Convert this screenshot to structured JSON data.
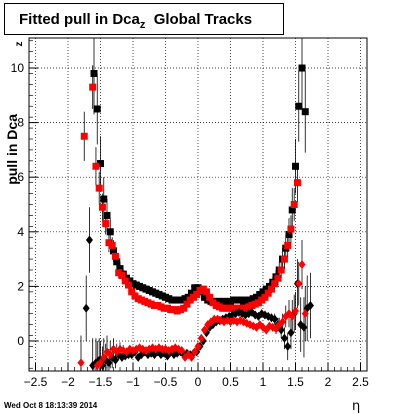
{
  "chart_data": {
    "type": "scatter",
    "title": "Fitted pull in Dca",
    "title_subscript": "z",
    "title_suffix": "Global Tracks",
    "xlabel": "η",
    "ylabel": "pull in Dca",
    "ylabel_subscript": "z",
    "xlim": [
      -2.6,
      2.6
    ],
    "ylim": [
      -1.1,
      11.1
    ],
    "x_ticks": [
      "−2.5",
      "−2",
      "−1.5",
      "−1",
      "−0.5",
      "0",
      "0.5",
      "1",
      "1.5",
      "2",
      "2.5"
    ],
    "x_tick_values": [
      -2.5,
      -2,
      -1.5,
      -1,
      -0.5,
      0,
      0.5,
      1,
      1.5,
      2,
      2.5
    ],
    "y_ticks": [
      "0",
      "2",
      "4",
      "6",
      "8",
      "10"
    ],
    "y_tick_values": [
      0,
      2,
      4,
      6,
      8,
      10
    ],
    "grid": true,
    "footer": "Wed Oct  8 18:13:39 2014",
    "series": [
      {
        "color": "#000000",
        "marker": "square",
        "x": [
          -1.6,
          -1.55,
          -1.5,
          -1.45,
          -1.4,
          -1.35,
          -1.3,
          -1.25,
          -1.2,
          -1.15,
          -1.1,
          -1.05,
          -1.0,
          -0.95,
          -0.9,
          -0.85,
          -0.8,
          -0.75,
          -0.7,
          -0.65,
          -0.6,
          -0.55,
          -0.5,
          -0.45,
          -0.4,
          -0.35,
          -0.3,
          -0.25,
          -0.2,
          -0.15,
          -0.1,
          -0.05,
          0.0,
          0.05,
          0.1,
          0.15,
          0.2,
          0.25,
          0.3,
          0.35,
          0.4,
          0.45,
          0.5,
          0.55,
          0.6,
          0.65,
          0.7,
          0.75,
          0.8,
          0.85,
          0.9,
          0.95,
          1.0,
          1.05,
          1.1,
          1.15,
          1.2,
          1.25,
          1.3,
          1.35,
          1.4,
          1.45,
          1.5,
          1.55,
          1.6,
          1.65
        ],
        "y": [
          9.8,
          8.5,
          6.5,
          5.2,
          4.6,
          4.0,
          3.3,
          2.9,
          2.65,
          2.45,
          2.3,
          2.2,
          2.1,
          2.05,
          2.0,
          1.95,
          1.9,
          1.85,
          1.8,
          1.75,
          1.7,
          1.65,
          1.6,
          1.55,
          1.5,
          1.5,
          1.5,
          1.5,
          1.55,
          1.6,
          1.75,
          1.95,
          1.95,
          1.8,
          1.6,
          1.5,
          1.45,
          1.45,
          1.45,
          1.45,
          1.45,
          1.45,
          1.45,
          1.5,
          1.5,
          1.5,
          1.45,
          1.5,
          1.5,
          1.55,
          1.6,
          1.7,
          1.8,
          1.9,
          2.0,
          2.15,
          2.35,
          2.6,
          3.0,
          3.4,
          3.9,
          4.8,
          6.4,
          8.6,
          10.0,
          8.4
        ],
        "err": [
          1.5,
          1.3,
          1.0,
          0.8,
          0.6,
          0.5,
          0.4,
          0.3,
          0.25,
          0.2,
          0.15,
          0.1,
          0.1,
          0.1,
          0.1,
          0.1,
          0.1,
          0.1,
          0.1,
          0.1,
          0.1,
          0.1,
          0.1,
          0.1,
          0.1,
          0.1,
          0.1,
          0.1,
          0.1,
          0.1,
          0.1,
          0.1,
          0.1,
          0.1,
          0.1,
          0.1,
          0.1,
          0.1,
          0.1,
          0.1,
          0.1,
          0.1,
          0.1,
          0.1,
          0.1,
          0.1,
          0.1,
          0.1,
          0.1,
          0.1,
          0.1,
          0.1,
          0.1,
          0.1,
          0.15,
          0.2,
          0.25,
          0.3,
          0.4,
          0.5,
          0.6,
          0.8,
          1.0,
          1.3,
          1.5,
          1.5
        ]
      },
      {
        "color": "#ff0000",
        "marker": "square",
        "x": [
          -1.75,
          -1.62,
          -1.57,
          -1.52,
          -1.47,
          -1.42,
          -1.37,
          -1.32,
          -1.27,
          -1.22,
          -1.17,
          -1.12,
          -1.07,
          -1.02,
          -0.97,
          -0.92,
          -0.87,
          -0.82,
          -0.77,
          -0.72,
          -0.67,
          -0.62,
          -0.57,
          -0.52,
          -0.47,
          -0.42,
          -0.37,
          -0.32,
          -0.27,
          -0.22,
          -0.17,
          -0.12,
          -0.07,
          -0.02,
          0.03,
          0.08,
          0.13,
          0.18,
          0.23,
          0.28,
          0.33,
          0.38,
          0.43,
          0.48,
          0.53,
          0.58,
          0.63,
          0.68,
          0.73,
          0.78,
          0.83,
          0.88,
          0.93,
          0.98,
          1.03,
          1.08,
          1.13,
          1.18,
          1.23,
          1.28,
          1.33,
          1.38,
          1.43,
          1.48,
          1.53
        ],
        "y": [
          7.5,
          9.3,
          6.4,
          5.6,
          4.9,
          4.3,
          3.6,
          3.5,
          3.1,
          2.5,
          2.4,
          2.2,
          2.05,
          1.8,
          1.65,
          1.55,
          1.5,
          1.45,
          1.4,
          1.35,
          1.3,
          1.3,
          1.25,
          1.2,
          1.2,
          1.15,
          1.15,
          1.1,
          1.15,
          1.2,
          1.35,
          1.5,
          1.6,
          1.7,
          1.85,
          1.9,
          1.8,
          1.6,
          1.4,
          1.3,
          1.25,
          1.2,
          1.2,
          1.2,
          1.2,
          1.2,
          1.2,
          1.2,
          1.2,
          1.25,
          1.3,
          1.35,
          1.4,
          1.5,
          1.6,
          1.75,
          1.9,
          2.1,
          2.3,
          2.6,
          3.0,
          3.5,
          4.1,
          5.0,
          5.8
        ],
        "err": [
          0.9,
          0.8,
          0.7,
          0.6,
          0.5,
          0.4,
          0.35,
          0.3,
          0.25,
          0.2,
          0.15,
          0.1,
          0.1,
          0.1,
          0.1,
          0.1,
          0.1,
          0.1,
          0.1,
          0.1,
          0.1,
          0.1,
          0.1,
          0.1,
          0.1,
          0.1,
          0.1,
          0.1,
          0.1,
          0.1,
          0.1,
          0.1,
          0.1,
          0.1,
          0.1,
          0.1,
          0.1,
          0.1,
          0.1,
          0.1,
          0.1,
          0.1,
          0.1,
          0.1,
          0.1,
          0.1,
          0.1,
          0.1,
          0.1,
          0.1,
          0.1,
          0.1,
          0.1,
          0.1,
          0.1,
          0.1,
          0.15,
          0.2,
          0.25,
          0.3,
          0.35,
          0.4,
          0.5,
          0.6,
          0.7
        ]
      },
      {
        "color": "#000000",
        "marker": "diamond",
        "x": [
          -1.72,
          -1.67,
          -1.62,
          -1.57,
          -1.52,
          -1.47,
          -1.42,
          -1.37,
          -1.32,
          -1.27,
          -1.22,
          -1.17,
          -1.12,
          -1.07,
          -1.02,
          -0.97,
          -0.92,
          -0.87,
          -0.82,
          -0.77,
          -0.72,
          -0.67,
          -0.62,
          -0.57,
          -0.52,
          -0.47,
          -0.42,
          -0.37,
          -0.32,
          -0.27,
          -0.22,
          -0.17,
          -0.12,
          -0.07,
          -0.02,
          0.03,
          0.08,
          0.13,
          0.18,
          0.23,
          0.28,
          0.33,
          0.38,
          0.43,
          0.48,
          0.53,
          0.58,
          0.63,
          0.68,
          0.73,
          0.78,
          0.83,
          0.88,
          0.93,
          0.98,
          1.03,
          1.08,
          1.13,
          1.18,
          1.23,
          1.28,
          1.33,
          1.38,
          1.43,
          1.48,
          1.53,
          1.58,
          1.63,
          1.68,
          1.73
        ],
        "y": [
          1.2,
          3.7,
          -0.9,
          -0.8,
          -0.7,
          -0.9,
          -0.7,
          -0.8,
          -0.6,
          -0.7,
          -0.5,
          -0.6,
          -0.55,
          -0.5,
          -0.5,
          -0.4,
          -0.6,
          -0.5,
          -0.4,
          -0.5,
          -0.45,
          -0.5,
          -0.4,
          -0.5,
          -0.45,
          -0.55,
          -0.4,
          -0.5,
          -0.45,
          -0.4,
          -0.5,
          -0.45,
          -0.5,
          -0.45,
          -0.4,
          -0.2,
          0.0,
          0.3,
          0.5,
          0.6,
          0.7,
          0.75,
          0.8,
          0.85,
          0.9,
          0.95,
          1.0,
          1.05,
          1.0,
          0.95,
          1.0,
          1.05,
          0.95,
          0.9,
          1.0,
          0.95,
          0.9,
          0.85,
          0.8,
          0.6,
          0.4,
          0.1,
          -0.2,
          0.3,
          1.0,
          2.1,
          0.6,
          0.5,
          1.2,
          1.3
        ],
        "err": [
          1.2,
          1.2,
          1.0,
          0.9,
          0.8,
          0.7,
          0.6,
          0.5,
          0.4,
          0.3,
          0.2,
          0.15,
          0.1,
          0.1,
          0.1,
          0.1,
          0.1,
          0.1,
          0.1,
          0.1,
          0.1,
          0.1,
          0.1,
          0.1,
          0.1,
          0.1,
          0.1,
          0.1,
          0.1,
          0.1,
          0.1,
          0.1,
          0.1,
          0.1,
          0.1,
          0.1,
          0.1,
          0.1,
          0.1,
          0.1,
          0.1,
          0.1,
          0.1,
          0.1,
          0.1,
          0.1,
          0.1,
          0.1,
          0.1,
          0.1,
          0.1,
          0.1,
          0.1,
          0.1,
          0.1,
          0.1,
          0.1,
          0.15,
          0.2,
          0.25,
          0.3,
          0.4,
          0.5,
          0.6,
          0.7,
          0.9,
          1.0,
          1.1,
          1.2,
          1.2
        ]
      },
      {
        "color": "#ff0000",
        "marker": "diamond",
        "x": [
          -1.8,
          -1.55,
          -1.5,
          -1.45,
          -1.4,
          -1.35,
          -1.3,
          -1.25,
          -1.2,
          -1.15,
          -1.1,
          -1.05,
          -1.0,
          -0.95,
          -0.9,
          -0.85,
          -0.8,
          -0.75,
          -0.7,
          -0.65,
          -0.6,
          -0.55,
          -0.5,
          -0.45,
          -0.4,
          -0.35,
          -0.3,
          -0.25,
          -0.2,
          -0.15,
          -0.1,
          -0.05,
          0.0,
          0.05,
          0.1,
          0.15,
          0.2,
          0.25,
          0.3,
          0.35,
          0.4,
          0.45,
          0.5,
          0.55,
          0.6,
          0.65,
          0.7,
          0.75,
          0.8,
          0.85,
          0.9,
          0.95,
          1.0,
          1.05,
          1.1,
          1.15,
          1.2,
          1.25,
          1.3,
          1.35,
          1.4,
          1.45,
          1.5,
          1.55,
          1.6,
          1.65
        ],
        "y": [
          -0.8,
          -0.9,
          -0.8,
          -0.6,
          -0.4,
          -0.5,
          -0.3,
          -0.4,
          -0.3,
          -0.35,
          -0.4,
          -0.3,
          -0.35,
          -0.3,
          -0.25,
          -0.3,
          -0.35,
          -0.3,
          -0.25,
          -0.3,
          -0.25,
          -0.3,
          -0.3,
          -0.35,
          -0.3,
          -0.25,
          -0.3,
          -0.35,
          -0.6,
          -0.5,
          -0.6,
          -0.4,
          -0.2,
          0.1,
          0.4,
          0.6,
          0.7,
          0.8,
          0.8,
          0.75,
          0.7,
          0.75,
          0.7,
          0.75,
          0.7,
          0.75,
          0.7,
          0.65,
          0.6,
          0.55,
          0.5,
          0.6,
          0.5,
          0.4,
          0.55,
          0.5,
          0.45,
          0.6,
          0.7,
          0.9,
          1.0,
          0.9,
          1.1,
          2.1,
          2.8,
          1.0
        ],
        "err": [
          1.0,
          0.9,
          0.8,
          0.7,
          0.6,
          0.5,
          0.4,
          0.3,
          0.25,
          0.2,
          0.15,
          0.1,
          0.1,
          0.1,
          0.1,
          0.1,
          0.1,
          0.1,
          0.1,
          0.1,
          0.1,
          0.1,
          0.1,
          0.1,
          0.1,
          0.1,
          0.1,
          0.1,
          0.1,
          0.1,
          0.1,
          0.1,
          0.1,
          0.1,
          0.1,
          0.1,
          0.1,
          0.1,
          0.1,
          0.1,
          0.1,
          0.1,
          0.1,
          0.1,
          0.1,
          0.1,
          0.1,
          0.1,
          0.1,
          0.1,
          0.1,
          0.1,
          0.1,
          0.1,
          0.1,
          0.15,
          0.2,
          0.25,
          0.3,
          0.4,
          0.5,
          0.6,
          0.7,
          0.8,
          0.9,
          1.0
        ]
      }
    ]
  }
}
